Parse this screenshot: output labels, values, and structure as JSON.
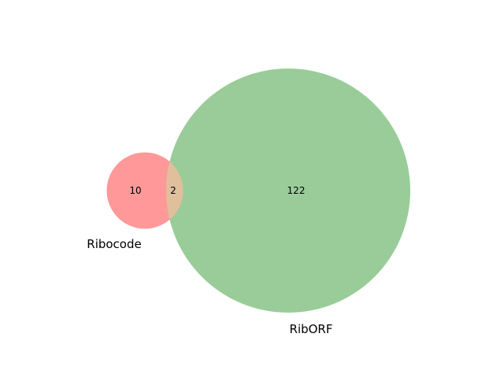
{
  "venn": {
    "sets": [
      {
        "name": "Ribocode",
        "color": "#ff9999"
      },
      {
        "name": "RibORF",
        "color": "#99cc99"
      }
    ],
    "intersection_color": "#e0bf9c",
    "counts": {
      "only_a": "10",
      "both": "2",
      "only_b": "122"
    }
  }
}
